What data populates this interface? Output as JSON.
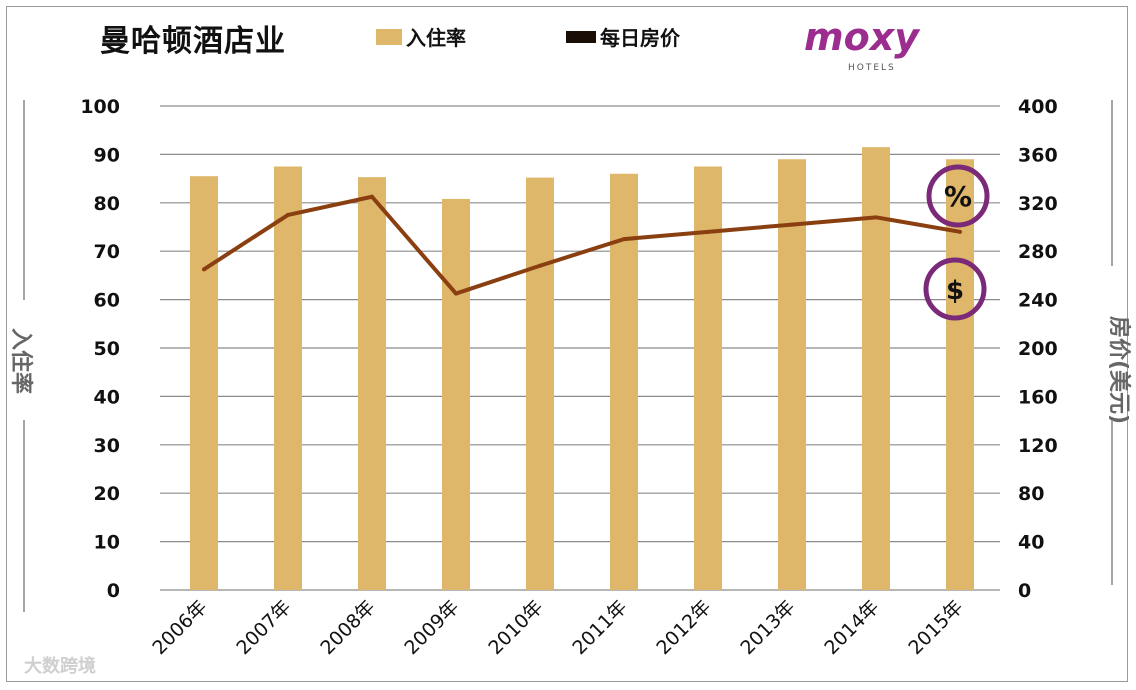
{
  "chart_data": {
    "type": "bar+line",
    "title": "曼哈顿酒店业",
    "categories": [
      "2006年",
      "2007年",
      "2008年",
      "2009年",
      "2010年",
      "2011年",
      "2012年",
      "2013年",
      "2014年",
      "2015年"
    ],
    "series": [
      {
        "name": "入住率",
        "type": "bar",
        "axis": "left",
        "values": [
          85.5,
          87.5,
          85.3,
          80.8,
          85.2,
          86.0,
          87.5,
          89.0,
          91.5,
          89.0
        ]
      },
      {
        "name": "每日房价",
        "type": "line",
        "axis": "right",
        "values": [
          265,
          310,
          325,
          245,
          268,
          290,
          296,
          302,
          308,
          296
        ]
      }
    ],
    "ylabel": "入住率",
    "y2label": "房价(美元)",
    "yticks": [
      "100",
      "90",
      "80",
      "70",
      "60",
      "50",
      "40",
      "30",
      "20",
      "10",
      "0"
    ],
    "y2ticks": [
      "400",
      "360",
      "320",
      "280",
      "240",
      "200",
      "160",
      "120",
      "80",
      "40",
      "0"
    ],
    "ylim": [
      0,
      100
    ],
    "y2lim": [
      0,
      400
    ],
    "grid": true,
    "legend_position": "top",
    "colors": {
      "bar": "#dfb76a",
      "line": "#8a3f10",
      "accent": "#7a2a78"
    },
    "badges": [
      "%",
      "$"
    ]
  },
  "logo": {
    "brand": "moxy",
    "sub": "HOTELS"
  },
  "watermark": "大数跨境"
}
